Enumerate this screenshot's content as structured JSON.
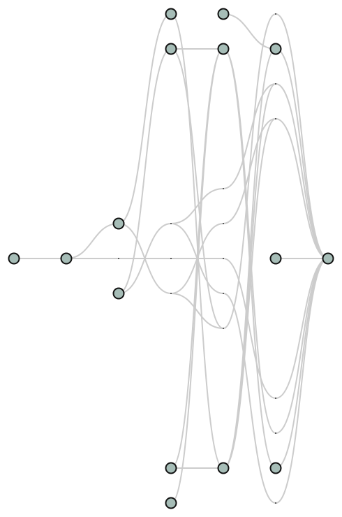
{
  "diagram": {
    "type": "layered-graph",
    "style": {
      "node_fill": "#a6bdb7",
      "node_stroke": "#111111",
      "edge_color": "#cccccc",
      "background": "#ffffff"
    },
    "layers": [
      {
        "real": [
          "mid"
        ],
        "dummy": []
      },
      {
        "real": [
          "mid"
        ],
        "dummy": []
      },
      {
        "real": [
          "r6",
          "r8"
        ],
        "dummy": [
          "mid"
        ]
      },
      {
        "real": [
          "r0",
          "r1",
          "r13",
          "r14"
        ],
        "dummy": [
          "r6",
          "mid",
          "r8"
        ]
      },
      {
        "real": [
          "r0",
          "r1",
          "r13"
        ],
        "dummy": [
          "r5",
          "r6",
          "mid",
          "r8",
          "r9"
        ]
      },
      {
        "real": [
          "r1",
          "mid",
          "r13"
        ],
        "dummy": [
          "r0",
          "r2",
          "r3",
          "r11",
          "r12",
          "r14"
        ]
      },
      {
        "real": [
          "mid"
        ],
        "dummy": []
      }
    ],
    "edges": [
      {
        "from": [
          0,
          "mid"
        ],
        "to": [
          1,
          "mid"
        ]
      },
      {
        "from": [
          1,
          "mid"
        ],
        "to": [
          2,
          "r6"
        ]
      },
      {
        "from": [
          1,
          "mid"
        ],
        "to": [
          2,
          "mid"
        ]
      },
      {
        "from": [
          2,
          "mid"
        ],
        "to": [
          3,
          "mid"
        ]
      },
      {
        "from": [
          3,
          "mid"
        ],
        "to": [
          4,
          "mid"
        ]
      },
      {
        "from": [
          4,
          "mid"
        ],
        "to": [
          5,
          "r11"
        ]
      },
      {
        "from": [
          2,
          "r6"
        ],
        "to": [
          3,
          "r0"
        ]
      },
      {
        "from": [
          2,
          "r6"
        ],
        "to": [
          3,
          "r8"
        ]
      },
      {
        "from": [
          2,
          "r8"
        ],
        "to": [
          3,
          "r1"
        ]
      },
      {
        "from": [
          2,
          "r8"
        ],
        "to": [
          3,
          "r6"
        ]
      },
      {
        "from": [
          3,
          "r0"
        ],
        "to": [
          4,
          "r13"
        ]
      },
      {
        "from": [
          3,
          "r1"
        ],
        "to": [
          4,
          "r1"
        ]
      },
      {
        "from": [
          3,
          "r1"
        ],
        "to": [
          4,
          "r9"
        ]
      },
      {
        "from": [
          3,
          "r6"
        ],
        "to": [
          4,
          "r8"
        ]
      },
      {
        "from": [
          3,
          "r6"
        ],
        "to": [
          4,
          "r5"
        ]
      },
      {
        "from": [
          3,
          "r8"
        ],
        "to": [
          4,
          "r6"
        ]
      },
      {
        "from": [
          3,
          "r8"
        ],
        "to": [
          4,
          "r9"
        ]
      },
      {
        "from": [
          3,
          "r13"
        ],
        "to": [
          4,
          "r1"
        ]
      },
      {
        "from": [
          3,
          "r13"
        ],
        "to": [
          4,
          "r13"
        ]
      },
      {
        "from": [
          3,
          "r14"
        ],
        "to": [
          4,
          "r1"
        ]
      },
      {
        "from": [
          4,
          "r0"
        ],
        "to": [
          5,
          "r1"
        ]
      },
      {
        "from": [
          4,
          "r1"
        ],
        "to": [
          5,
          "r13"
        ]
      },
      {
        "from": [
          4,
          "r1"
        ],
        "to": [
          5,
          "r12"
        ]
      },
      {
        "from": [
          4,
          "r5"
        ],
        "to": [
          5,
          "r2"
        ]
      },
      {
        "from": [
          4,
          "r6"
        ],
        "to": [
          5,
          "r3"
        ]
      },
      {
        "from": [
          4,
          "r8"
        ],
        "to": [
          5,
          "r14"
        ]
      },
      {
        "from": [
          4,
          "r9"
        ],
        "to": [
          5,
          "r0"
        ]
      },
      {
        "from": [
          4,
          "r13"
        ],
        "to": [
          5,
          "r1"
        ]
      },
      {
        "from": [
          4,
          "r13"
        ],
        "to": [
          5,
          "r3"
        ]
      },
      {
        "from": [
          4,
          "r13"
        ],
        "to": [
          5,
          "r2"
        ]
      },
      {
        "from": [
          5,
          "r0"
        ],
        "to": [
          6,
          "mid"
        ]
      },
      {
        "from": [
          5,
          "r1"
        ],
        "to": [
          6,
          "mid"
        ]
      },
      {
        "from": [
          5,
          "r2"
        ],
        "to": [
          6,
          "mid"
        ]
      },
      {
        "from": [
          5,
          "r3"
        ],
        "to": [
          6,
          "mid"
        ]
      },
      {
        "from": [
          5,
          "r11"
        ],
        "to": [
          6,
          "mid"
        ]
      },
      {
        "from": [
          5,
          "r12"
        ],
        "to": [
          6,
          "mid"
        ]
      },
      {
        "from": [
          5,
          "r13"
        ],
        "to": [
          6,
          "mid"
        ]
      },
      {
        "from": [
          5,
          "r14"
        ],
        "to": [
          6,
          "mid"
        ]
      },
      {
        "from": [
          5,
          "mid"
        ],
        "to": [
          6,
          "mid"
        ]
      }
    ]
  }
}
